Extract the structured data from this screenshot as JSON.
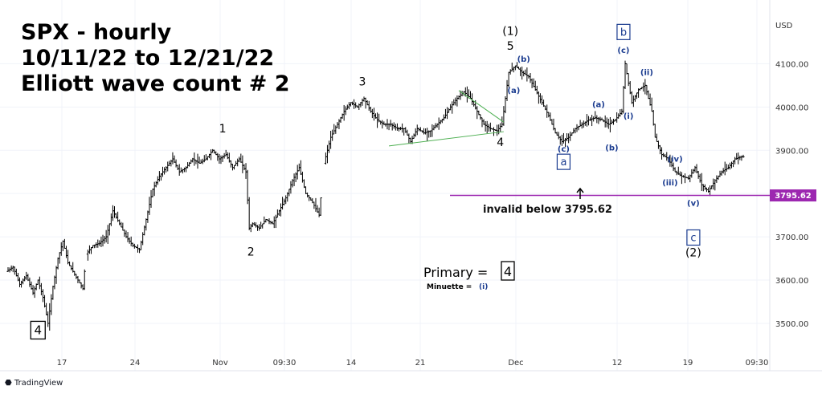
{
  "title_lines": [
    "SPX - hourly",
    "10/11/22 to 12/21/22",
    "Elliott  wave count # 2"
  ],
  "currency": "USD",
  "watermark": "TradingView",
  "chart_data": {
    "type": "ohlc",
    "x_ticks": [
      "17",
      "24",
      "Nov",
      "09:30",
      "14",
      "21",
      "Dec",
      "12",
      "19",
      "09:30"
    ],
    "y_ticks": [
      3500,
      3600,
      3700,
      3800,
      3900,
      4000,
      4100
    ],
    "y_tick_labels": [
      "3500.00",
      "3600.00",
      "3700.00",
      "3800.00",
      "3900.00",
      "4000.00",
      "4100.00"
    ],
    "ylim": [
      3435,
      4225
    ],
    "price_line": {
      "value": 3795.62,
      "label": "3795.62",
      "color": "#9c27b0"
    },
    "price_path": [
      [
        0,
        3620
      ],
      [
        4,
        3630
      ],
      [
        8,
        3590
      ],
      [
        12,
        3610
      ],
      [
        16,
        3570
      ],
      [
        19,
        3600
      ],
      [
        22,
        3560
      ],
      [
        25,
        3500
      ],
      [
        28,
        3585
      ],
      [
        31,
        3650
      ],
      [
        34,
        3690
      ],
      [
        37,
        3640
      ],
      [
        40,
        3620
      ],
      [
        43,
        3600
      ],
      [
        46,
        3580
      ],
      [
        48,
        3660
      ],
      [
        52,
        3680
      ],
      [
        56,
        3685
      ],
      [
        60,
        3700
      ],
      [
        64,
        3760
      ],
      [
        68,
        3730
      ],
      [
        72,
        3700
      ],
      [
        76,
        3680
      ],
      [
        80,
        3670
      ],
      [
        84,
        3740
      ],
      [
        88,
        3810
      ],
      [
        92,
        3840
      ],
      [
        96,
        3860
      ],
      [
        100,
        3880
      ],
      [
        104,
        3850
      ],
      [
        108,
        3860
      ],
      [
        112,
        3880
      ],
      [
        116,
        3870
      ],
      [
        120,
        3880
      ],
      [
        124,
        3900
      ],
      [
        128,
        3880
      ],
      [
        132,
        3890
      ],
      [
        136,
        3860
      ],
      [
        140,
        3880
      ],
      [
        144,
        3850
      ],
      [
        146,
        3720
      ],
      [
        148,
        3730
      ],
      [
        152,
        3720
      ],
      [
        156,
        3740
      ],
      [
        160,
        3730
      ],
      [
        164,
        3760
      ],
      [
        168,
        3790
      ],
      [
        172,
        3830
      ],
      [
        176,
        3860
      ],
      [
        180,
        3800
      ],
      [
        184,
        3780
      ],
      [
        188,
        3750
      ],
      [
        191,
        3870
      ],
      [
        195,
        3930
      ],
      [
        199,
        3960
      ],
      [
        203,
        3990
      ],
      [
        207,
        4010
      ],
      [
        211,
        4000
      ],
      [
        215,
        4020
      ],
      [
        219,
        3990
      ],
      [
        223,
        3970
      ],
      [
        227,
        3960
      ],
      [
        231,
        3960
      ],
      [
        235,
        3950
      ],
      [
        239,
        3950
      ],
      [
        243,
        3920
      ],
      [
        247,
        3950
      ],
      [
        251,
        3940
      ],
      [
        255,
        3945
      ],
      [
        259,
        3960
      ],
      [
        263,
        3975
      ],
      [
        267,
        4000
      ],
      [
        271,
        4020
      ],
      [
        275,
        4035
      ],
      [
        279,
        4020
      ],
      [
        283,
        3990
      ],
      [
        287,
        3960
      ],
      [
        291,
        3950
      ],
      [
        295,
        3945
      ],
      [
        298,
        3960
      ],
      [
        302,
        4080
      ],
      [
        306,
        4095
      ],
      [
        310,
        4080
      ],
      [
        314,
        4070
      ],
      [
        318,
        4040
      ],
      [
        322,
        4010
      ],
      [
        326,
        3980
      ],
      [
        330,
        3940
      ],
      [
        334,
        3920
      ],
      [
        338,
        3930
      ],
      [
        342,
        3950
      ],
      [
        346,
        3960
      ],
      [
        350,
        3970
      ],
      [
        354,
        3975
      ],
      [
        358,
        3970
      ],
      [
        362,
        3960
      ],
      [
        366,
        3970
      ],
      [
        370,
        3990
      ],
      [
        372,
        4100
      ],
      [
        376,
        4010
      ],
      [
        380,
        4040
      ],
      [
        384,
        4050
      ],
      [
        388,
        3990
      ],
      [
        390,
        3930
      ],
      [
        394,
        3890
      ],
      [
        398,
        3880
      ],
      [
        402,
        3850
      ],
      [
        406,
        3840
      ],
      [
        410,
        3835
      ],
      [
        414,
        3860
      ],
      [
        418,
        3820
      ],
      [
        422,
        3805
      ],
      [
        426,
        3830
      ],
      [
        430,
        3850
      ],
      [
        434,
        3860
      ],
      [
        438,
        3880
      ],
      [
        442,
        3885
      ]
    ],
    "triangle_lines": [
      [
        [
          229,
          3910
        ],
        [
          298,
          3943
        ]
      ],
      [
        [
          271,
          4038
        ],
        [
          298,
          3965
        ]
      ]
    ],
    "wave_labels": [
      {
        "text": "1",
        "x": 129,
        "y": 3941,
        "style": "num"
      },
      {
        "text": "2",
        "x": 146,
        "y": 3657,
        "style": "num"
      },
      {
        "text": "3",
        "x": 213,
        "y": 4050,
        "style": "num"
      },
      {
        "text": "4",
        "x": 296,
        "y": 3910,
        "style": "num"
      },
      {
        "text": "5",
        "x": 302,
        "y": 4132,
        "style": "num"
      },
      {
        "text": "(1)",
        "x": 302,
        "y": 4167,
        "style": "num"
      },
      {
        "text": "(a)",
        "x": 304,
        "y": 4032,
        "style": "sub"
      },
      {
        "text": "(b)",
        "x": 310,
        "y": 4104,
        "style": "sub"
      },
      {
        "text": "(c)",
        "x": 334,
        "y": 3897,
        "style": "sub"
      },
      {
        "text": "a",
        "x": 334,
        "y": 3865,
        "style": "box-blue"
      },
      {
        "text": "(a)",
        "x": 355,
        "y": 4000,
        "style": "sub"
      },
      {
        "text": "(b)",
        "x": 363,
        "y": 3900,
        "style": "sub"
      },
      {
        "text": "(c)",
        "x": 370,
        "y": 4125,
        "style": "sub"
      },
      {
        "text": "b",
        "x": 370,
        "y": 4165,
        "style": "box-blue"
      },
      {
        "text": "(i)",
        "x": 373,
        "y": 3973,
        "style": "sub"
      },
      {
        "text": "(ii)",
        "x": 384,
        "y": 4074,
        "style": "sub"
      },
      {
        "text": "(iii)",
        "x": 398,
        "y": 3819,
        "style": "sub"
      },
      {
        "text": "(iv)",
        "x": 401,
        "y": 3874,
        "style": "sub"
      },
      {
        "text": "(v)",
        "x": 412,
        "y": 3772,
        "style": "sub"
      },
      {
        "text": "c",
        "x": 412,
        "y": 3690,
        "style": "box-blue"
      },
      {
        "text": "(2)",
        "x": 412,
        "y": 3655,
        "style": "num"
      },
      {
        "text": "4",
        "x": 18,
        "y": 3475,
        "style": "box-black"
      }
    ]
  },
  "annotations": {
    "invalid_text": "invalid below 3795.62",
    "primary_label": "Primary  =",
    "primary_value": "4",
    "minuette_label": "Minuette = ",
    "minuette_value": "(i)"
  }
}
